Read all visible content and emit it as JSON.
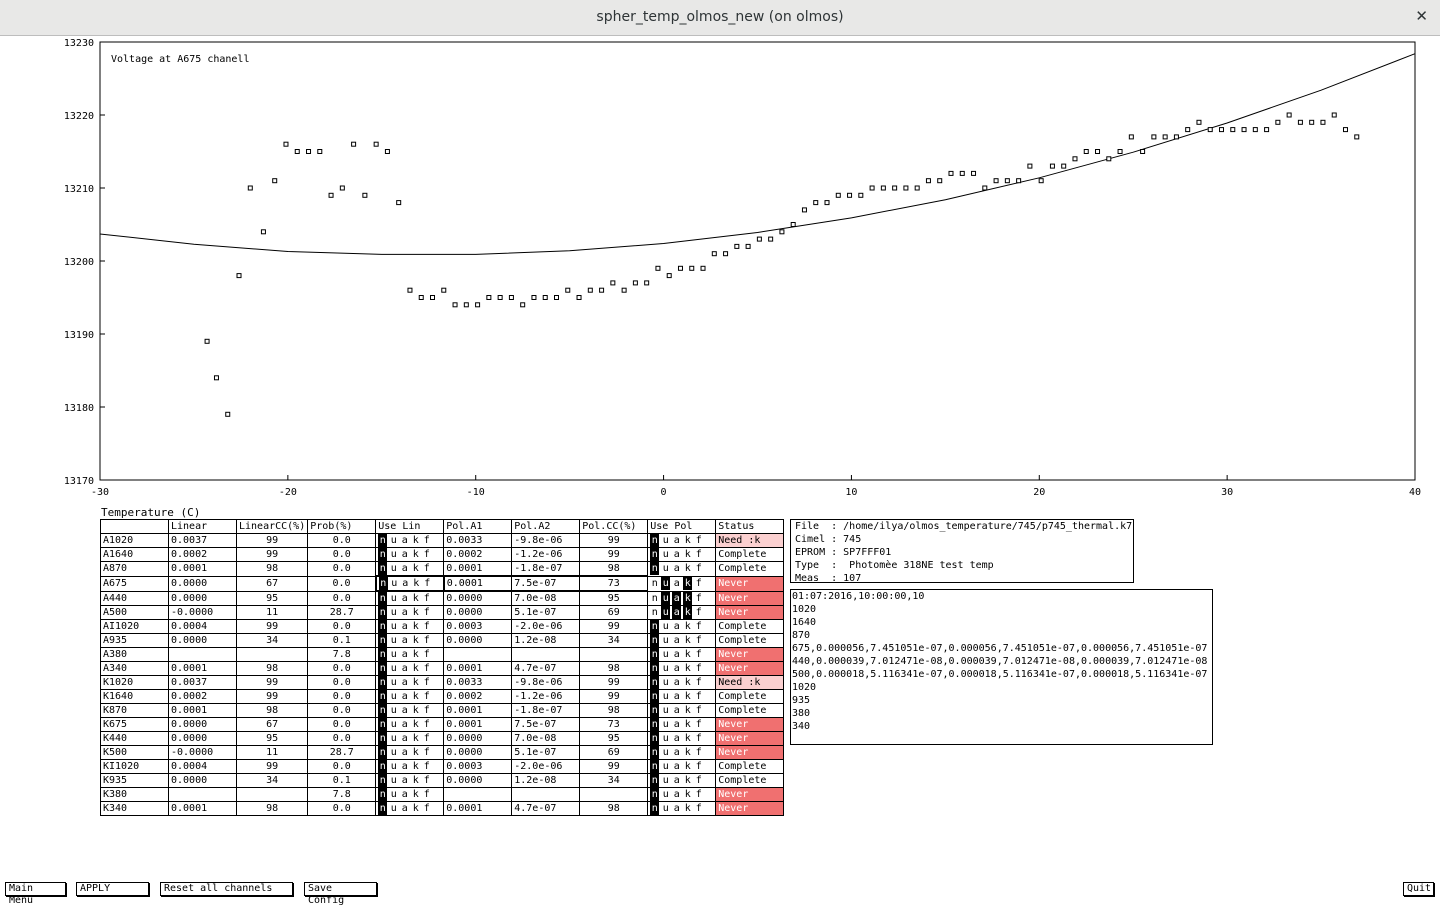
{
  "window": {
    "title": "spher_temp_olmos_new (on olmos)",
    "close_glyph": "✕"
  },
  "chart_data": {
    "type": "scatter",
    "title": "Voltage at A675 chanell",
    "xlabel": "Temperature (C)",
    "ylabel": "",
    "xlim": [
      -30,
      40
    ],
    "ylim": [
      13170,
      13230
    ],
    "xticks": [
      -30,
      -20,
      -10,
      0,
      10,
      20,
      30,
      40
    ],
    "yticks": [
      13170,
      13180,
      13190,
      13200,
      13210,
      13220,
      13230
    ],
    "points": [
      [
        -24.3,
        13189
      ],
      [
        -23.8,
        13184
      ],
      [
        -23.2,
        13179
      ],
      [
        -22.6,
        13198
      ],
      [
        -22.0,
        13210
      ],
      [
        -21.3,
        13204
      ],
      [
        -20.7,
        13211
      ],
      [
        -20.1,
        13216
      ],
      [
        -19.5,
        13215
      ],
      [
        -18.9,
        13215
      ],
      [
        -18.3,
        13215
      ],
      [
        -17.7,
        13209
      ],
      [
        -17.1,
        13210
      ],
      [
        -16.5,
        13216
      ],
      [
        -15.9,
        13209
      ],
      [
        -15.3,
        13216
      ],
      [
        -14.7,
        13215
      ],
      [
        -14.1,
        13208
      ],
      [
        -13.5,
        13196
      ],
      [
        -12.9,
        13195
      ],
      [
        -12.3,
        13195
      ],
      [
        -11.7,
        13196
      ],
      [
        -11.1,
        13194
      ],
      [
        -10.5,
        13194
      ],
      [
        -9.9,
        13194
      ],
      [
        -9.3,
        13195
      ],
      [
        -8.7,
        13195
      ],
      [
        -8.1,
        13195
      ],
      [
        -7.5,
        13194
      ],
      [
        -6.9,
        13195
      ],
      [
        -6.3,
        13195
      ],
      [
        -5.7,
        13195
      ],
      [
        -5.1,
        13196
      ],
      [
        -4.5,
        13195
      ],
      [
        -3.9,
        13196
      ],
      [
        -3.3,
        13196
      ],
      [
        -2.7,
        13197
      ],
      [
        -2.1,
        13196
      ],
      [
        -1.5,
        13197
      ],
      [
        -0.9,
        13197
      ],
      [
        -0.3,
        13199
      ],
      [
        0.3,
        13198
      ],
      [
        0.9,
        13199
      ],
      [
        1.5,
        13199
      ],
      [
        2.1,
        13199
      ],
      [
        2.7,
        13201
      ],
      [
        3.3,
        13201
      ],
      [
        3.9,
        13202
      ],
      [
        4.5,
        13202
      ],
      [
        5.1,
        13203
      ],
      [
        5.7,
        13203
      ],
      [
        6.3,
        13204
      ],
      [
        6.9,
        13205
      ],
      [
        7.5,
        13207
      ],
      [
        8.1,
        13208
      ],
      [
        8.7,
        13208
      ],
      [
        9.3,
        13209
      ],
      [
        9.9,
        13209
      ],
      [
        10.5,
        13209
      ],
      [
        11.1,
        13210
      ],
      [
        11.7,
        13210
      ],
      [
        12.3,
        13210
      ],
      [
        12.9,
        13210
      ],
      [
        13.5,
        13210
      ],
      [
        14.1,
        13211
      ],
      [
        14.7,
        13211
      ],
      [
        15.3,
        13212
      ],
      [
        15.9,
        13212
      ],
      [
        16.5,
        13212
      ],
      [
        17.1,
        13210
      ],
      [
        17.7,
        13211
      ],
      [
        18.3,
        13211
      ],
      [
        18.9,
        13211
      ],
      [
        19.5,
        13213
      ],
      [
        20.1,
        13211
      ],
      [
        20.7,
        13213
      ],
      [
        21.3,
        13213
      ],
      [
        21.9,
        13214
      ],
      [
        22.5,
        13215
      ],
      [
        23.1,
        13215
      ],
      [
        23.7,
        13214
      ],
      [
        24.3,
        13215
      ],
      [
        24.9,
        13217
      ],
      [
        25.5,
        13215
      ],
      [
        26.1,
        13217
      ],
      [
        26.7,
        13217
      ],
      [
        27.3,
        13217
      ],
      [
        27.9,
        13218
      ],
      [
        28.5,
        13219
      ],
      [
        29.1,
        13218
      ],
      [
        29.7,
        13218
      ],
      [
        30.3,
        13218
      ],
      [
        30.9,
        13218
      ],
      [
        31.5,
        13218
      ],
      [
        32.1,
        13218
      ],
      [
        32.7,
        13219
      ],
      [
        33.3,
        13220
      ],
      [
        33.9,
        13219
      ],
      [
        34.5,
        13219
      ],
      [
        35.1,
        13219
      ],
      [
        35.7,
        13220
      ],
      [
        36.3,
        13218
      ],
      [
        36.9,
        13217
      ]
    ],
    "fit_curve": {
      "type": "line",
      "note": "quadratic fit",
      "x": [
        -30,
        -25,
        -20,
        -15,
        -10,
        -5,
        0,
        5,
        10,
        15,
        20,
        25,
        30,
        35,
        40
      ],
      "y": [
        13203.7,
        13202.3,
        13201.3,
        13200.9,
        13200.9,
        13201.4,
        13202.4,
        13203.9,
        13205.9,
        13208.4,
        13211.4,
        13214.9,
        13218.9,
        13223.4,
        13228.4
      ]
    }
  },
  "table": {
    "headers": [
      "",
      "Linear",
      "LinearCC(%)",
      "Prob(%)",
      "Use Lin",
      "Pol.A1",
      "Pol.A2",
      "Pol.CC(%)",
      "Use Pol",
      "Status"
    ],
    "rows": [
      {
        "ch": "A1020",
        "lin": "0.0037",
        "lcc": "99",
        "prob": "0.0",
        "ulin": [
          1,
          0,
          0,
          0,
          0
        ],
        "a1": "0.0033",
        "a2": "-9.8e-06",
        "pcc": "99",
        "upol": [
          1,
          0,
          0,
          0,
          0
        ],
        "status": "Need :k",
        "sk": "need"
      },
      {
        "ch": "A1640",
        "lin": "0.0002",
        "lcc": "99",
        "prob": "0.0",
        "ulin": [
          1,
          0,
          0,
          0,
          0
        ],
        "a1": "0.0002",
        "a2": "-1.2e-06",
        "pcc": "99",
        "upol": [
          1,
          0,
          0,
          0,
          0
        ],
        "status": "Complete",
        "sk": "complete"
      },
      {
        "ch": "A870",
        "lin": "0.0001",
        "lcc": "98",
        "prob": "0.0",
        "ulin": [
          1,
          0,
          0,
          0,
          0
        ],
        "a1": "0.0001",
        "a2": "-1.8e-07",
        "pcc": "98",
        "upol": [
          1,
          0,
          0,
          0,
          0
        ],
        "status": "Complete",
        "sk": "complete"
      },
      {
        "ch": "A675",
        "lin": "0.0000",
        "lcc": "67",
        "prob": "0.0",
        "ulin": [
          1,
          0,
          0,
          0,
          0
        ],
        "a1": "0.0001",
        "a2": "7.5e-07",
        "pcc": "73",
        "upol": [
          0,
          1,
          0,
          1,
          0
        ],
        "status": "Never",
        "sk": "never",
        "sel": true
      },
      {
        "ch": "A440",
        "lin": "0.0000",
        "lcc": "95",
        "prob": "0.0",
        "ulin": [
          1,
          0,
          0,
          0,
          0
        ],
        "a1": "0.0000",
        "a2": "7.0e-08",
        "pcc": "95",
        "upol": [
          0,
          1,
          1,
          1,
          0
        ],
        "status": "Never",
        "sk": "never"
      },
      {
        "ch": "A500",
        "lin": "-0.0000",
        "lcc": "11",
        "prob": "28.7",
        "ulin": [
          1,
          0,
          0,
          0,
          0
        ],
        "a1": "0.0000",
        "a2": "5.1e-07",
        "pcc": "69",
        "upol": [
          0,
          1,
          1,
          1,
          0
        ],
        "status": "Never",
        "sk": "never"
      },
      {
        "ch": "AI1020",
        "lin": "0.0004",
        "lcc": "99",
        "prob": "0.0",
        "ulin": [
          1,
          0,
          0,
          0,
          0
        ],
        "a1": "0.0003",
        "a2": "-2.0e-06",
        "pcc": "99",
        "upol": [
          1,
          0,
          0,
          0,
          0
        ],
        "status": "Complete",
        "sk": "complete"
      },
      {
        "ch": "A935",
        "lin": "0.0000",
        "lcc": "34",
        "prob": "0.1",
        "ulin": [
          1,
          0,
          0,
          0,
          0
        ],
        "a1": "0.0000",
        "a2": "1.2e-08",
        "pcc": "34",
        "upol": [
          1,
          0,
          0,
          0,
          0
        ],
        "status": "Complete",
        "sk": "complete"
      },
      {
        "ch": "A380",
        "lin": "",
        "lcc": "",
        "prob": "7.8",
        "ulin": [
          1,
          0,
          0,
          0,
          0
        ],
        "a1": "",
        "a2": "",
        "pcc": "",
        "upol": [
          1,
          0,
          0,
          0,
          0
        ],
        "status": "Never",
        "sk": "never"
      },
      {
        "ch": "A340",
        "lin": "0.0001",
        "lcc": "98",
        "prob": "0.0",
        "ulin": [
          1,
          0,
          0,
          0,
          0
        ],
        "a1": "0.0001",
        "a2": "4.7e-07",
        "pcc": "98",
        "upol": [
          1,
          0,
          0,
          0,
          0
        ],
        "status": "Never",
        "sk": "never"
      },
      {
        "ch": "K1020",
        "lin": "0.0037",
        "lcc": "99",
        "prob": "0.0",
        "ulin": [
          1,
          0,
          0,
          0,
          0
        ],
        "a1": "0.0033",
        "a2": "-9.8e-06",
        "pcc": "99",
        "upol": [
          1,
          0,
          0,
          0,
          0
        ],
        "status": "Need :k",
        "sk": "need"
      },
      {
        "ch": "K1640",
        "lin": "0.0002",
        "lcc": "99",
        "prob": "0.0",
        "ulin": [
          1,
          0,
          0,
          0,
          0
        ],
        "a1": "0.0002",
        "a2": "-1.2e-06",
        "pcc": "99",
        "upol": [
          1,
          0,
          0,
          0,
          0
        ],
        "status": "Complete",
        "sk": "complete"
      },
      {
        "ch": "K870",
        "lin": "0.0001",
        "lcc": "98",
        "prob": "0.0",
        "ulin": [
          1,
          0,
          0,
          0,
          0
        ],
        "a1": "0.0001",
        "a2": "-1.8e-07",
        "pcc": "98",
        "upol": [
          1,
          0,
          0,
          0,
          0
        ],
        "status": "Complete",
        "sk": "complete"
      },
      {
        "ch": "K675",
        "lin": "0.0000",
        "lcc": "67",
        "prob": "0.0",
        "ulin": [
          1,
          0,
          0,
          0,
          0
        ],
        "a1": "0.0001",
        "a2": "7.5e-07",
        "pcc": "73",
        "upol": [
          1,
          0,
          0,
          0,
          0
        ],
        "status": "Never",
        "sk": "never"
      },
      {
        "ch": "K440",
        "lin": "0.0000",
        "lcc": "95",
        "prob": "0.0",
        "ulin": [
          1,
          0,
          0,
          0,
          0
        ],
        "a1": "0.0000",
        "a2": "7.0e-08",
        "pcc": "95",
        "upol": [
          1,
          0,
          0,
          0,
          0
        ],
        "status": "Never",
        "sk": "never"
      },
      {
        "ch": "K500",
        "lin": "-0.0000",
        "lcc": "11",
        "prob": "28.7",
        "ulin": [
          1,
          0,
          0,
          0,
          0
        ],
        "a1": "0.0000",
        "a2": "5.1e-07",
        "pcc": "69",
        "upol": [
          1,
          0,
          0,
          0,
          0
        ],
        "status": "Never",
        "sk": "never"
      },
      {
        "ch": "KI1020",
        "lin": "0.0004",
        "lcc": "99",
        "prob": "0.0",
        "ulin": [
          1,
          0,
          0,
          0,
          0
        ],
        "a1": "0.0003",
        "a2": "-2.0e-06",
        "pcc": "99",
        "upol": [
          1,
          0,
          0,
          0,
          0
        ],
        "status": "Complete",
        "sk": "complete"
      },
      {
        "ch": "K935",
        "lin": "0.0000",
        "lcc": "34",
        "prob": "0.1",
        "ulin": [
          1,
          0,
          0,
          0,
          0
        ],
        "a1": "0.0000",
        "a2": "1.2e-08",
        "pcc": "34",
        "upol": [
          1,
          0,
          0,
          0,
          0
        ],
        "status": "Complete",
        "sk": "complete"
      },
      {
        "ch": "K380",
        "lin": "",
        "lcc": "",
        "prob": "7.8",
        "ulin": [
          1,
          0,
          0,
          0,
          0
        ],
        "a1": "",
        "a2": "",
        "pcc": "",
        "upol": [
          1,
          0,
          0,
          0,
          0
        ],
        "status": "Never",
        "sk": "never"
      },
      {
        "ch": "K340",
        "lin": "0.0001",
        "lcc": "98",
        "prob": "0.0",
        "ulin": [
          1,
          0,
          0,
          0,
          0
        ],
        "a1": "0.0001",
        "a2": "4.7e-07",
        "pcc": "98",
        "upol": [
          1,
          0,
          0,
          0,
          0
        ],
        "status": "Never",
        "sk": "never"
      }
    ],
    "flag_letters": [
      "n",
      "u",
      "a",
      "k",
      "f"
    ]
  },
  "info": {
    "lines": [
      "File  : /home/ilya/olmos_temperature/745/p745_thermal.k7",
      "Cimel : 745",
      "EPROM : SP7FFF01",
      "Type  :  Photomèe 318NE test temp",
      "Meas  : 107"
    ]
  },
  "text": {
    "lines": [
      "01:07:2016,10:00:00,10",
      "1020",
      "1640",
      "870",
      "675,0.000056,7.451051e-07,0.000056,7.451051e-07,0.000056,7.451051e-07",
      "440,0.000039,7.012471e-08,0.000039,7.012471e-08,0.000039,7.012471e-08",
      "500,0.000018,5.116341e-07,0.000018,5.116341e-07,0.000018,5.116341e-07",
      "1020",
      "935",
      "380",
      "340"
    ]
  },
  "buttons": {
    "main_menu": "Main Menu",
    "apply": "APPLY",
    "reset": "Reset all channels",
    "save": "Save Config",
    "quit": "Quit"
  },
  "colors": {
    "never": "#f07070",
    "need": "#fbd0d0"
  }
}
